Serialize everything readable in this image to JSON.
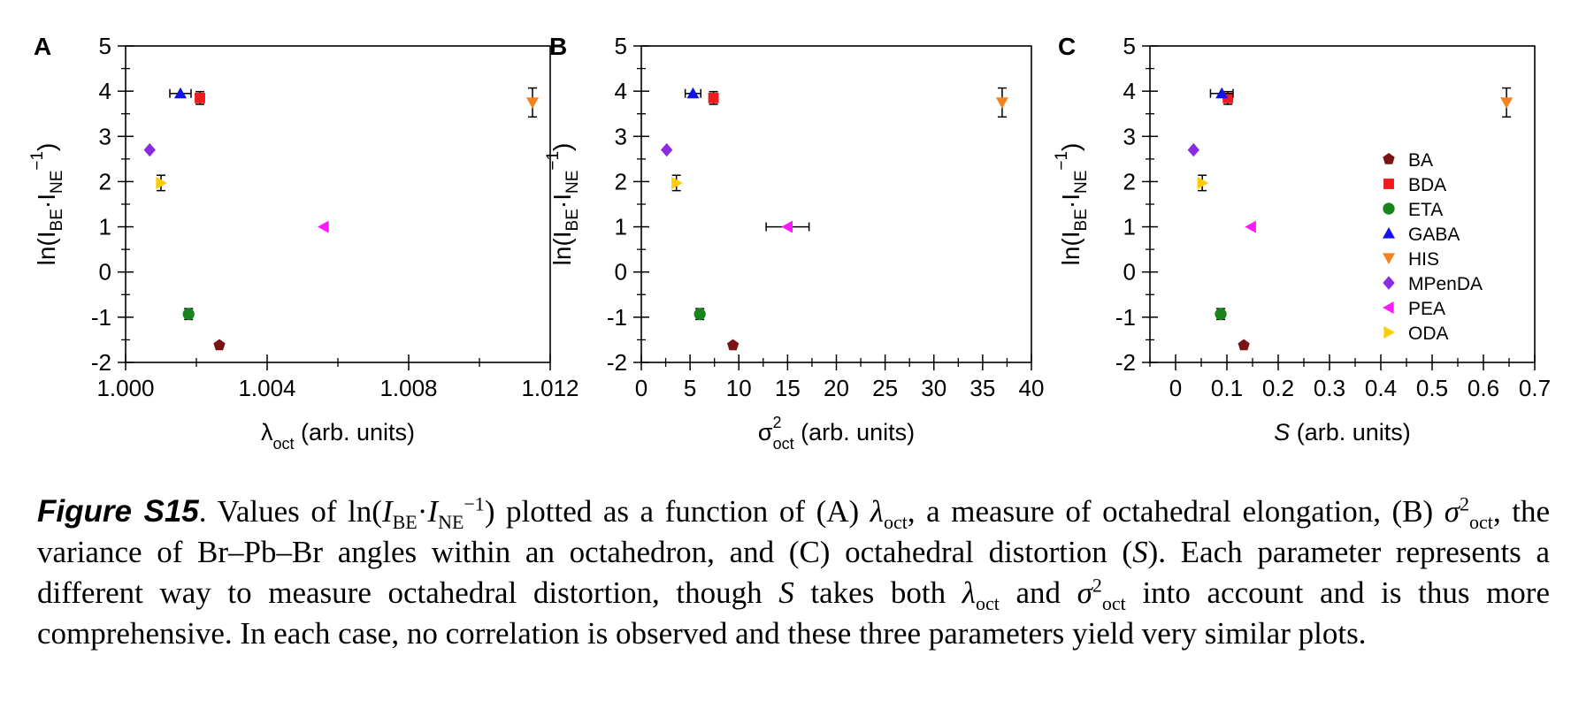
{
  "chart_data": [
    {
      "type": "scatter",
      "panel_label": "A",
      "xlabel_main": "λ",
      "xlabel_sub": "oct",
      "xlabel_sup": "",
      "xlabel_unit": "(arb. units)",
      "ylabel": {
        "prefix": "ln(I",
        "sub1": "BE",
        "dot": "·I",
        "sub2": "NE",
        "sup": "−1",
        "suffix": ")"
      },
      "xlim": [
        1.0,
        1.012
      ],
      "ylim": [
        -2,
        5
      ],
      "x_ticks": [
        1.0,
        1.004,
        1.008,
        1.012
      ],
      "x_tick_labels": [
        "1.000",
        "1.004",
        "1.008",
        "1.012"
      ],
      "y_ticks": [
        -2,
        -1,
        0,
        1,
        2,
        3,
        4,
        5
      ],
      "y_tick_labels": [
        "-2",
        "-1",
        "0",
        "1",
        "2",
        "3",
        "4",
        "5"
      ],
      "points": [
        {
          "name": "BA",
          "x": 1.00265,
          "y": -1.62,
          "xerr": 0,
          "yerr": 0
        },
        {
          "name": "BDA",
          "x": 1.0021,
          "y": 3.85,
          "xerr": 0,
          "yerr": 0.14
        },
        {
          "name": "ETA",
          "x": 1.00178,
          "y": -0.93,
          "xerr": 0,
          "yerr": 0.12
        },
        {
          "name": "GABA",
          "x": 1.00155,
          "y": 3.95,
          "xerr": 0.0003,
          "yerr": 0
        },
        {
          "name": "HIS",
          "x": 1.0115,
          "y": 3.75,
          "xerr": 0,
          "yerr": 0.32
        },
        {
          "name": "MPenDA",
          "x": 1.00068,
          "y": 2.7,
          "xerr": 0,
          "yerr": 0
        },
        {
          "name": "PEA",
          "x": 1.0056,
          "y": 1.0,
          "xerr": 0,
          "yerr": 0
        },
        {
          "name": "ODA",
          "x": 1.001,
          "y": 1.97,
          "xerr": 0,
          "yerr": 0.17
        }
      ]
    },
    {
      "type": "scatter",
      "panel_label": "B",
      "xlabel_main": "σ",
      "xlabel_sub": "oct",
      "xlabel_sup": "2",
      "xlabel_unit": "(arb. units)",
      "ylabel": {
        "prefix": "ln(I",
        "sub1": "BE",
        "dot": "·I",
        "sub2": "NE",
        "sup": "−1",
        "suffix": ")"
      },
      "xlim": [
        0,
        40
      ],
      "ylim": [
        -2,
        5
      ],
      "x_ticks": [
        0,
        5,
        10,
        15,
        20,
        25,
        30,
        35,
        40
      ],
      "x_tick_labels": [
        "0",
        "5",
        "10",
        "15",
        "20",
        "25",
        "30",
        "35",
        "40"
      ],
      "y_ticks": [
        -2,
        -1,
        0,
        1,
        2,
        3,
        4,
        5
      ],
      "y_tick_labels": [
        "-2",
        "-1",
        "0",
        "1",
        "2",
        "3",
        "4",
        "5"
      ],
      "points": [
        {
          "name": "BA",
          "x": 9.4,
          "y": -1.62,
          "xerr": 0,
          "yerr": 0
        },
        {
          "name": "BDA",
          "x": 7.4,
          "y": 3.85,
          "xerr": 0,
          "yerr": 0.14
        },
        {
          "name": "ETA",
          "x": 6.0,
          "y": -0.93,
          "xerr": 0,
          "yerr": 0.12
        },
        {
          "name": "GABA",
          "x": 5.3,
          "y": 3.95,
          "xerr": 0.8,
          "yerr": 0
        },
        {
          "name": "HIS",
          "x": 37.0,
          "y": 3.75,
          "xerr": 0,
          "yerr": 0.32
        },
        {
          "name": "MPenDA",
          "x": 2.6,
          "y": 2.7,
          "xerr": 0,
          "yerr": 0
        },
        {
          "name": "PEA",
          "x": 15.0,
          "y": 1.0,
          "xerr": 2.2,
          "yerr": 0
        },
        {
          "name": "ODA",
          "x": 3.6,
          "y": 1.97,
          "xerr": 0,
          "yerr": 0.17
        }
      ]
    },
    {
      "type": "scatter",
      "panel_label": "C",
      "xlabel_main": "S",
      "xlabel_sub": "",
      "xlabel_sup": "",
      "xlabel_unit": "(arb. units)",
      "ylabel": {
        "prefix": "ln(I",
        "sub1": "BE",
        "dot": "·I",
        "sub2": "NE",
        "sup": "−1",
        "suffix": ")"
      },
      "xlim": [
        -0.05,
        0.7
      ],
      "ylim": [
        -2,
        5
      ],
      "x_ticks": [
        0,
        0.1,
        0.2,
        0.3,
        0.4,
        0.5,
        0.6,
        0.7
      ],
      "x_tick_labels": [
        "0",
        "0.1",
        "0.2",
        "0.3",
        "0.4",
        "0.5",
        "0.6",
        "0.7"
      ],
      "y_ticks": [
        -2,
        -1,
        0,
        1,
        2,
        3,
        4,
        5
      ],
      "y_tick_labels": [
        "-2",
        "-1",
        "0",
        "1",
        "2",
        "3",
        "4",
        "5"
      ],
      "points": [
        {
          "name": "BA",
          "x": 0.133,
          "y": -1.62,
          "xerr": 0,
          "yerr": 0
        },
        {
          "name": "BDA",
          "x": 0.102,
          "y": 3.85,
          "xerr": 0,
          "yerr": 0.14
        },
        {
          "name": "ETA",
          "x": 0.088,
          "y": -0.93,
          "xerr": 0,
          "yerr": 0.12
        },
        {
          "name": "GABA",
          "x": 0.09,
          "y": 3.95,
          "xerr": 0.022,
          "yerr": 0
        },
        {
          "name": "HIS",
          "x": 0.645,
          "y": 3.75,
          "xerr": 0,
          "yerr": 0.32
        },
        {
          "name": "MPenDA",
          "x": 0.035,
          "y": 2.7,
          "xerr": 0,
          "yerr": 0
        },
        {
          "name": "PEA",
          "x": 0.147,
          "y": 1.0,
          "xerr": 0,
          "yerr": 0
        },
        {
          "name": "ODA",
          "x": 0.052,
          "y": 1.97,
          "xerr": 0,
          "yerr": 0.17
        }
      ],
      "legend_position": "right"
    }
  ],
  "legend": [
    {
      "name": "BA",
      "marker": "pentagon",
      "color": "#7a1414"
    },
    {
      "name": "BDA",
      "marker": "square",
      "color": "#ee1c1c"
    },
    {
      "name": "ETA",
      "marker": "circle",
      "color": "#17851c"
    },
    {
      "name": "GABA",
      "marker": "triangle-up",
      "color": "#1212ee"
    },
    {
      "name": "HIS",
      "marker": "triangle-down",
      "color": "#f5821f"
    },
    {
      "name": "MPenDA",
      "marker": "diamond",
      "color": "#8a2be2"
    },
    {
      "name": "PEA",
      "marker": "triangle-left",
      "color": "#ff19ff"
    },
    {
      "name": "ODA",
      "marker": "triangle-right",
      "color": "#ffcc00"
    }
  ],
  "caption": {
    "label": "Figure S15",
    "t1": ". Values of ln(",
    "t2": "I",
    "t3": "BE",
    "t4": "·",
    "t5": "I",
    "t6": "NE",
    "t7": "−1",
    "t8": ") plotted as a function of (A) ",
    "t9": "λ",
    "t10": "oct",
    "t11": ", a measure of octahedral elongation, (B) ",
    "t12": "σ",
    "t13": "2",
    "t14": "oct",
    "t15": ", the variance of Br–Pb–Br angles within an octahedron, and (C) octahedral distortion (",
    "t16": "S",
    "t17": "). Each parameter represents a different way to measure octahedral distortion, though ",
    "t18": "S",
    "t19": " takes both ",
    "t20": "λ",
    "t21": "oct",
    "t22": " and ",
    "t23": "σ",
    "t24": "2",
    "t25": "oct",
    "t26": " into account and is thus more comprehensive. In each case, no correlation is observed and these three parameters yield very similar plots."
  }
}
